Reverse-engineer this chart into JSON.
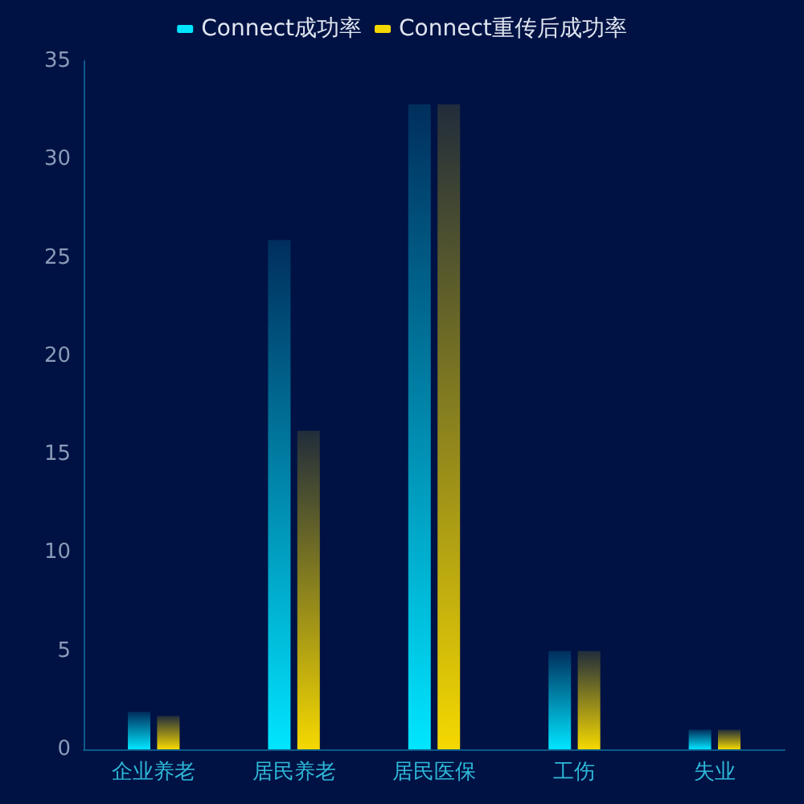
{
  "chart_data": {
    "type": "bar",
    "categories": [
      "企业养老",
      "居民养老",
      "居民医保",
      "工伤",
      "失业"
    ],
    "series": [
      {
        "name": "Connect成功率",
        "color": "#00e5ff",
        "values": [
          1.9,
          25.9,
          32.8,
          5,
          1
        ]
      },
      {
        "name": "Connect重传后成功率",
        "color": "#f5d800",
        "values": [
          1.7,
          16.2,
          32.8,
          5,
          1
        ]
      }
    ],
    "ylim": [
      0,
      35
    ],
    "yticks": [
      0,
      5,
      10,
      15,
      20,
      25,
      30,
      35
    ],
    "grid": false,
    "legend": "top"
  }
}
